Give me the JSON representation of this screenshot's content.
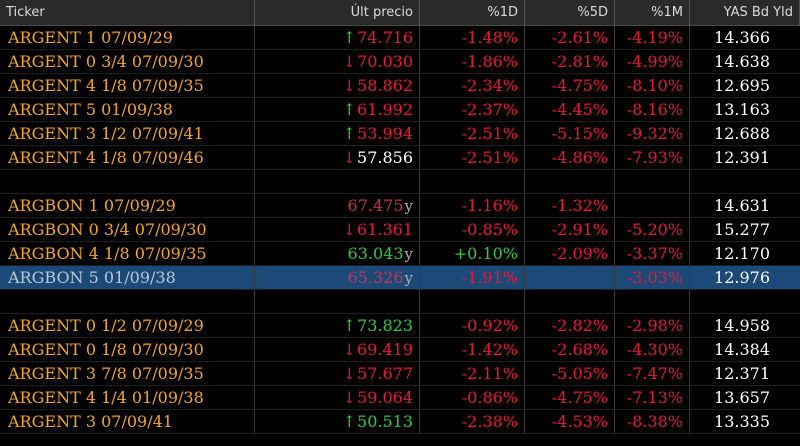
{
  "headers": {
    "ticker": "Ticker",
    "price": "Últ precio",
    "d1": "%1D",
    "d5": "%5D",
    "m1": "%1M",
    "yld": "YAS Bd Yld"
  },
  "group1": [
    {
      "ticker": "ARGENT 1 07/09/29",
      "arrow": "↑",
      "price": "74.716",
      "d1": "-1.48%",
      "d5": "-2.61%",
      "m1": "-4.19%",
      "yld": "14.366"
    },
    {
      "ticker": "ARGENT 0 3/4 07/09/30",
      "arrow": "↓",
      "price": "70.030",
      "d1": "-1.86%",
      "d5": "-2.81%",
      "m1": "-4.99%",
      "yld": "14.638"
    },
    {
      "ticker": "ARGENT 4 1/8 07/09/35",
      "arrow": "↓",
      "price": "58.862",
      "d1": "-2.34%",
      "d5": "-4.75%",
      "m1": "-8.10%",
      "yld": "12.695"
    },
    {
      "ticker": "ARGENT 5 01/09/38",
      "arrow": "↑",
      "price": "61.992",
      "d1": "-2.37%",
      "d5": "-4.45%",
      "m1": "-8.16%",
      "yld": "13.163"
    },
    {
      "ticker": "ARGENT 3 1/2 07/09/41",
      "arrow": "↑",
      "price": "53.994",
      "d1": "-2.51%",
      "d5": "-5.15%",
      "m1": "-9.32%",
      "yld": "12.688"
    },
    {
      "ticker": "ARGENT 4 1/8 07/09/46",
      "arrow": "↓",
      "price": "57.856",
      "d1": "-2.51%",
      "d5": "-4.86%",
      "m1": "-7.93%",
      "yld": "12.391"
    }
  ],
  "group2": [
    {
      "ticker": "ARGBON 1 07/09/29",
      "price": "67.475",
      "suffix": "y",
      "d1": "-1.16%",
      "d5": "-1.32%",
      "m1": "",
      "yld": "14.631"
    },
    {
      "ticker": "ARGBON 0 3/4 07/09/30",
      "arrow": "↓",
      "price": "61.361",
      "d1": "-0.85%",
      "d5": "-2.91%",
      "m1": "-5.20%",
      "yld": "15.277"
    },
    {
      "ticker": "ARGBON 4 1/8 07/09/35",
      "price": "63.043",
      "suffix": "y",
      "d1": "+0.10%",
      "d5": "-2.09%",
      "m1": "-3.37%",
      "yld": "12.170"
    },
    {
      "ticker": "ARGBON 5 01/09/38",
      "price": "65.326",
      "suffix": "y",
      "d1": "-1.91%",
      "d5": "",
      "m1": "-3.03%",
      "yld": "12.976"
    }
  ],
  "group3": [
    {
      "ticker": "ARGENT 0 1/2 07/09/29",
      "arrow": "↑",
      "price": "73.823",
      "d1": "-0.92%",
      "d5": "-2.82%",
      "m1": "-2.98%",
      "yld": "14.958"
    },
    {
      "ticker": "ARGENT 0 1/8 07/09/30",
      "arrow": "↓",
      "price": "69.419",
      "d1": "-1.42%",
      "d5": "-2.68%",
      "m1": "-4.30%",
      "yld": "14.384"
    },
    {
      "ticker": "ARGENT 3 7/8 07/09/35",
      "arrow": "↓",
      "price": "57.677",
      "d1": "-2.11%",
      "d5": "-5.05%",
      "m1": "-7.47%",
      "yld": "12.371"
    },
    {
      "ticker": "ARGENT 4 1/4 01/09/38",
      "arrow": "↓",
      "price": "59.064",
      "d1": "-0.86%",
      "d5": "-4.75%",
      "m1": "-7.13%",
      "yld": "13.657"
    },
    {
      "ticker": "ARGENT 3 07/09/41",
      "arrow": "↑",
      "price": "50.513",
      "d1": "-2.38%",
      "d5": "-4.53%",
      "m1": "-8.38%",
      "yld": "13.335"
    }
  ],
  "colors": {
    "ticker": "#f5a623",
    "up": "#2ecc40",
    "down": "#e8173c",
    "selected_bg": "#1c4a78"
  }
}
